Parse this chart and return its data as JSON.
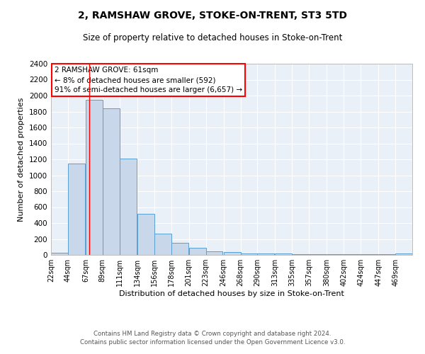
{
  "title": "2, RAMSHAW GROVE, STOKE-ON-TRENT, ST3 5TD",
  "subtitle": "Size of property relative to detached houses in Stoke-on-Trent",
  "xlabel": "Distribution of detached houses by size in Stoke-on-Trent",
  "ylabel": "Number of detached properties",
  "footer_line1": "Contains HM Land Registry data © Crown copyright and database right 2024.",
  "footer_line2": "Contains public sector information licensed under the Open Government Licence v3.0.",
  "annotation_title": "2 RAMSHAW GROVE: 61sqm",
  "annotation_line2": "← 8% of detached houses are smaller (592)",
  "annotation_line3": "91% of semi-detached houses are larger (6,657) →",
  "bar_color": "#c8d8ea",
  "bar_edge_color": "#5a9fd4",
  "background_color": "#eaf0f8",
  "grid_color": "#ffffff",
  "categories": [
    "22sqm",
    "44sqm",
    "67sqm",
    "89sqm",
    "111sqm",
    "134sqm",
    "156sqm",
    "178sqm",
    "201sqm",
    "223sqm",
    "246sqm",
    "268sqm",
    "290sqm",
    "313sqm",
    "335sqm",
    "357sqm",
    "380sqm",
    "402sqm",
    "424sqm",
    "447sqm",
    "469sqm"
  ],
  "values": [
    30,
    1150,
    1950,
    1840,
    1210,
    520,
    265,
    155,
    85,
    45,
    40,
    20,
    15,
    15,
    10,
    5,
    5,
    5,
    5,
    5,
    20
  ],
  "red_line_x": 61,
  "ylim": [
    0,
    2400
  ],
  "yticks": [
    0,
    200,
    400,
    600,
    800,
    1000,
    1200,
    1400,
    1600,
    1800,
    2000,
    2200,
    2400
  ],
  "bin_centers": [
    22,
    44,
    67,
    89,
    111,
    134,
    156,
    178,
    201,
    223,
    246,
    268,
    290,
    313,
    335,
    357,
    380,
    402,
    424,
    447,
    469
  ],
  "bin_width": 22
}
